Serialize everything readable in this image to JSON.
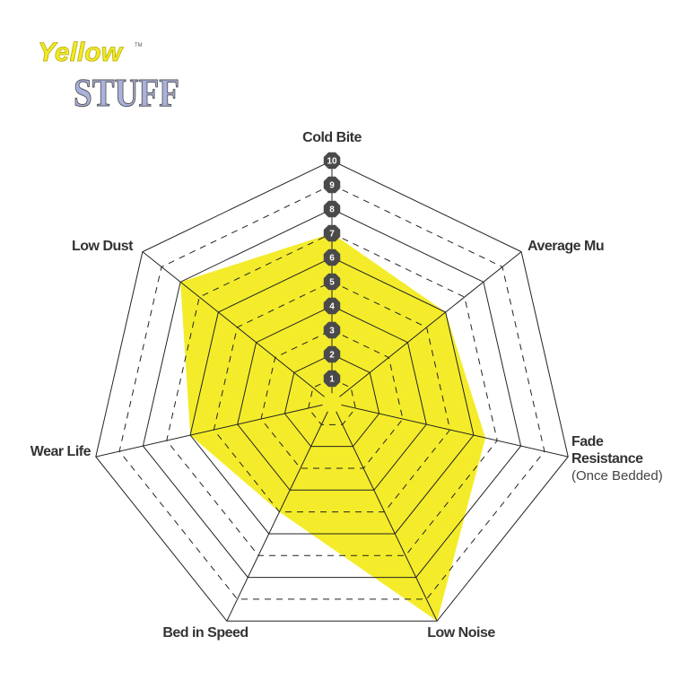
{
  "logo": {
    "text_top": "Yellow",
    "text_bottom": "STUFF",
    "tm": "TM",
    "colors": {
      "yellow": "#f2e925",
      "lavender": "#a9b1dc"
    }
  },
  "chart_data": {
    "type": "radar",
    "axes": [
      "Cold Bite",
      "Average Mu",
      "Fade Resistance",
      "Low Noise",
      "Bed in Speed",
      "Wear Life",
      "Low Dust"
    ],
    "axis_sublabels": {
      "Fade Resistance": "(Once Bedded)"
    },
    "values": [
      7,
      6,
      6.5,
      10,
      5,
      6,
      8
    ],
    "range": [
      0,
      10
    ],
    "ticks": [
      "1",
      "2",
      "3",
      "4",
      "5",
      "6",
      "7",
      "8",
      "9",
      "10"
    ],
    "fill_color": "#f4ec2a",
    "grid": true
  }
}
